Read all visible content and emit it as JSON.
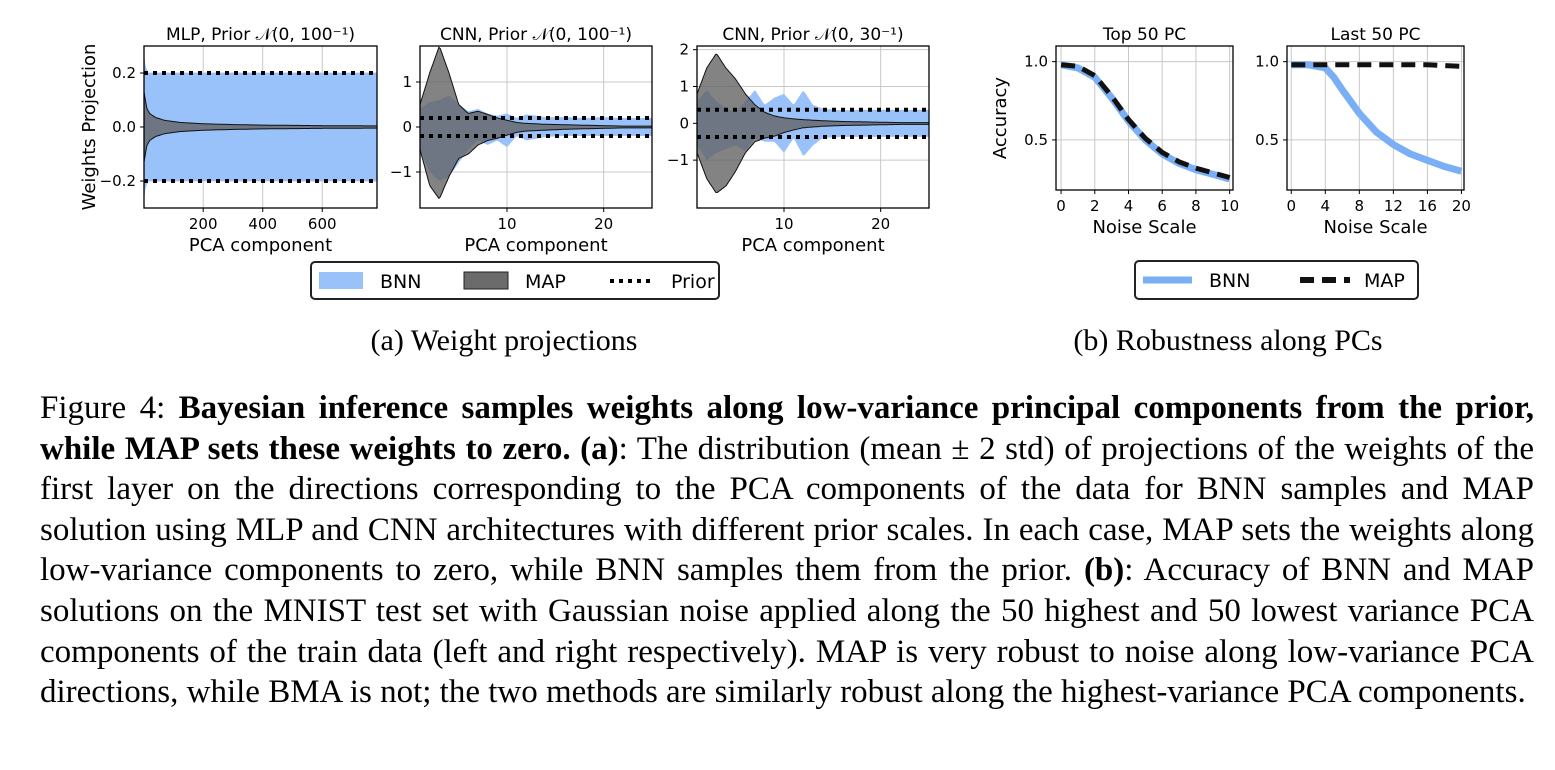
{
  "figure": {
    "subcaption_a": "(a) Weight projections",
    "subcaption_b": "(b) Robustness along PCs",
    "legend_a": {
      "bnn": "BNN",
      "map": "MAP",
      "prior": "Prior"
    },
    "legend_b": {
      "bnn": "BNN",
      "map": "MAP"
    },
    "colors": {
      "bnn": "#99c2fa",
      "bnn_line": "#7aaef5",
      "map": "#606060",
      "prior": "#000000",
      "grid": "#c8c8c8"
    }
  },
  "caption": {
    "label": "Figure 4:",
    "bold_title": "Bayesian inference samples weights along low-variance principal components from the prior, while MAP sets these weights to zero.",
    "part_a_tag": "(a)",
    "part_a_text": ": The distribution (mean ± 2 std) of projections of the weights of the first layer on the directions corresponding to the PCA components of the data for BNN samples and MAP solution using MLP and CNN architectures with different prior scales. In each case, MAP sets the weights along low-variance components to zero, while BNN samples them from the prior.",
    "part_b_tag": "(b)",
    "part_b_text": ": Accuracy of BNN and MAP solutions on the MNIST test set with Gaussian noise applied along the 50 highest and 50 lowest variance PCA components of the train data (left and right respectively). MAP is very robust to noise along low-variance PCA directions, while BMA is not; the two methods are similarly robust along the highest-variance PCA components."
  },
  "chart_data": [
    {
      "type": "area",
      "title": "MLP, Prior 𝒩(0, 100⁻¹)",
      "xlabel": "PCA component",
      "ylabel": "Weights Projection",
      "xlim": [
        1,
        784
      ],
      "ylim": [
        -0.3,
        0.3
      ],
      "xticks": [
        200,
        400,
        600
      ],
      "yticks": [
        -0.2,
        0.0,
        0.2
      ],
      "ytick_labels": [
        "−0.2",
        "0.0",
        "0.2"
      ],
      "grid": true,
      "prior_band": 0.2,
      "bnn_band": {
        "x": [
          1,
          5,
          15,
          784
        ],
        "half_width": [
          0.27,
          0.23,
          0.2,
          0.2
        ]
      },
      "map_band": {
        "x": [
          1,
          10,
          20,
          40,
          70,
          120,
          200,
          300,
          400,
          600,
          784
        ],
        "half_width": [
          0.13,
          0.07,
          0.05,
          0.035,
          0.025,
          0.017,
          0.012,
          0.009,
          0.007,
          0.005,
          0.004
        ]
      }
    },
    {
      "type": "area",
      "title": "CNN, Prior 𝒩(0, 100⁻¹)",
      "xlabel": "PCA component",
      "ylabel": "",
      "xlim": [
        1,
        25
      ],
      "ylim": [
        -1.8,
        1.8
      ],
      "xticks": [
        10,
        20
      ],
      "yticks": [
        -1,
        0,
        1
      ],
      "ytick_labels": [
        "−1",
        "0",
        "1"
      ],
      "grid": true,
      "prior_band": 0.2,
      "bnn_band": {
        "x": [
          1,
          2,
          3,
          4,
          5,
          6,
          7,
          8,
          9,
          10,
          11,
          12,
          14,
          16,
          18,
          20,
          22,
          25
        ],
        "upper": [
          0.4,
          0.55,
          0.6,
          0.7,
          0.5,
          0.35,
          0.4,
          0.3,
          0.25,
          0.3,
          0.2,
          0.28,
          0.22,
          0.22,
          0.2,
          0.22,
          0.2,
          0.2
        ],
        "lower": [
          -0.5,
          -1.0,
          -1.2,
          -1.1,
          -0.8,
          -0.5,
          -0.3,
          -0.4,
          -0.3,
          -0.45,
          -0.2,
          -0.3,
          -0.22,
          -0.2,
          -0.2,
          -0.2,
          -0.2,
          -0.2
        ]
      },
      "map_band": {
        "x": [
          1,
          2,
          3,
          4,
          5,
          6,
          7,
          8,
          9,
          10,
          11,
          12,
          14,
          16,
          18,
          20,
          22,
          25
        ],
        "upper": [
          0.5,
          1.2,
          1.8,
          1.2,
          0.5,
          0.3,
          0.35,
          0.28,
          0.2,
          0.15,
          0.1,
          0.08,
          0.06,
          0.05,
          0.04,
          0.03,
          0.02,
          0.02
        ],
        "lower": [
          -0.5,
          -1.3,
          -1.6,
          -1.1,
          -0.7,
          -0.6,
          -0.4,
          -0.3,
          -0.25,
          -0.18,
          -0.12,
          -0.09,
          -0.07,
          -0.05,
          -0.04,
          -0.03,
          -0.02,
          -0.02
        ]
      }
    },
    {
      "type": "area",
      "title": "CNN, Prior 𝒩(0, 30⁻¹)",
      "xlabel": "PCA component",
      "ylabel": "",
      "xlim": [
        1,
        25
      ],
      "ylim": [
        -2.3,
        2.1
      ],
      "xticks": [
        10,
        20
      ],
      "yticks": [
        -1,
        0,
        1,
        2
      ],
      "ytick_labels": [
        "−1",
        "0",
        "1",
        "2"
      ],
      "grid": true,
      "prior_band": 0.37,
      "bnn_band": {
        "x": [
          1,
          2,
          3,
          4,
          5,
          6,
          7,
          8,
          9,
          10,
          11,
          12,
          13,
          14,
          16,
          18,
          20,
          22,
          25
        ],
        "upper": [
          0.6,
          0.9,
          0.6,
          0.4,
          0.3,
          0.6,
          0.9,
          0.5,
          0.7,
          0.8,
          0.5,
          0.9,
          0.5,
          0.4,
          0.35,
          0.37,
          0.37,
          0.37,
          0.37
        ],
        "lower": [
          -0.6,
          -1.0,
          -0.8,
          -0.7,
          -0.6,
          -0.75,
          -0.4,
          -0.5,
          -0.5,
          -0.8,
          -0.4,
          -0.9,
          -0.6,
          -0.4,
          -0.37,
          -0.37,
          -0.37,
          -0.37,
          -0.37
        ]
      },
      "map_band": {
        "x": [
          1,
          2,
          3,
          4,
          5,
          6,
          7,
          8,
          9,
          10,
          11,
          12,
          14,
          16,
          18,
          20,
          22,
          25
        ],
        "upper": [
          0.8,
          1.5,
          1.9,
          1.5,
          1.2,
          0.8,
          0.5,
          0.3,
          0.2,
          0.15,
          0.12,
          0.1,
          0.07,
          0.05,
          0.04,
          0.03,
          0.02,
          0.02
        ],
        "lower": [
          -0.8,
          -1.5,
          -1.9,
          -1.7,
          -1.3,
          -0.8,
          -0.5,
          -0.4,
          -0.35,
          -0.25,
          -0.18,
          -0.12,
          -0.08,
          -0.06,
          -0.05,
          -0.04,
          -0.03,
          -0.03
        ]
      }
    },
    {
      "type": "line",
      "title": "Top 50 PC",
      "xlabel": "Noise Scale",
      "ylabel": "Accuracy",
      "xlim": [
        -0.3,
        10.2
      ],
      "ylim": [
        0.18,
        1.1
      ],
      "xticks": [
        0,
        2,
        4,
        6,
        8,
        10
      ],
      "yticks": [
        0.5,
        1.0
      ],
      "grid": true,
      "series": [
        {
          "name": "BNN",
          "x": [
            0,
            1,
            2,
            3,
            4,
            5,
            6,
            7,
            8,
            9,
            10
          ],
          "y": [
            0.98,
            0.96,
            0.9,
            0.77,
            0.62,
            0.5,
            0.41,
            0.35,
            0.31,
            0.28,
            0.25
          ]
        },
        {
          "name": "MAP",
          "x": [
            0,
            1,
            2,
            3,
            4,
            5,
            6,
            7,
            8,
            9,
            10
          ],
          "y": [
            0.98,
            0.97,
            0.91,
            0.78,
            0.63,
            0.51,
            0.42,
            0.36,
            0.32,
            0.29,
            0.26
          ]
        }
      ]
    },
    {
      "type": "line",
      "title": "Last 50 PC",
      "xlabel": "Noise Scale",
      "ylabel": "",
      "xlim": [
        -0.5,
        20.3
      ],
      "ylim": [
        0.18,
        1.1
      ],
      "xticks": [
        0,
        4,
        8,
        12,
        16,
        20
      ],
      "yticks": [
        0.5,
        1.0
      ],
      "grid": true,
      "series": [
        {
          "name": "BNN",
          "x": [
            0,
            2,
            4,
            5,
            6,
            8,
            10,
            12,
            14,
            16,
            18,
            20
          ],
          "y": [
            0.98,
            0.98,
            0.96,
            0.9,
            0.82,
            0.67,
            0.55,
            0.47,
            0.41,
            0.37,
            0.33,
            0.3
          ]
        },
        {
          "name": "MAP",
          "x": [
            0,
            4,
            8,
            12,
            16,
            20
          ],
          "y": [
            0.98,
            0.98,
            0.98,
            0.98,
            0.98,
            0.97
          ]
        }
      ]
    }
  ]
}
